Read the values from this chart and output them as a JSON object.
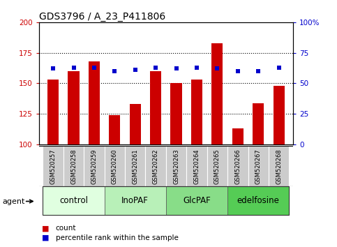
{
  "title": "GDS3796 / A_23_P411806",
  "samples": [
    "GSM520257",
    "GSM520258",
    "GSM520259",
    "GSM520260",
    "GSM520261",
    "GSM520262",
    "GSM520263",
    "GSM520264",
    "GSM520265",
    "GSM520266",
    "GSM520267",
    "GSM520268"
  ],
  "count_values": [
    153,
    160,
    168,
    124,
    133,
    160,
    150,
    153,
    183,
    113,
    134,
    148
  ],
  "percentile_values": [
    62,
    63,
    63,
    60,
    61,
    63,
    62,
    63,
    62,
    60,
    60,
    63
  ],
  "ylim_left": [
    100,
    200
  ],
  "ylim_right": [
    0,
    100
  ],
  "yticks_left": [
    100,
    125,
    150,
    175,
    200
  ],
  "yticks_right": [
    0,
    25,
    50,
    75,
    100
  ],
  "groups": [
    {
      "label": "control",
      "start": 0,
      "end": 3,
      "color": "#e0ffe0"
    },
    {
      "label": "InoPAF",
      "start": 3,
      "end": 6,
      "color": "#b8f0b8"
    },
    {
      "label": "GlcPAF",
      "start": 6,
      "end": 9,
      "color": "#88dd88"
    },
    {
      "label": "edelfosine",
      "start": 9,
      "end": 12,
      "color": "#55cc55"
    }
  ],
  "bar_color": "#cc0000",
  "dot_color": "#0000cc",
  "bar_width": 0.55,
  "tick_bg": "#cccccc",
  "ylabel_left_color": "#cc0000",
  "ylabel_right_color": "#0000cc",
  "grid_yticks": [
    125,
    150,
    175
  ],
  "agent_label": "agent",
  "title_fontsize": 10,
  "tick_fontsize": 7.5,
  "sample_fontsize": 6.0,
  "group_fontsize": 8.5,
  "legend_fontsize": 7.5
}
